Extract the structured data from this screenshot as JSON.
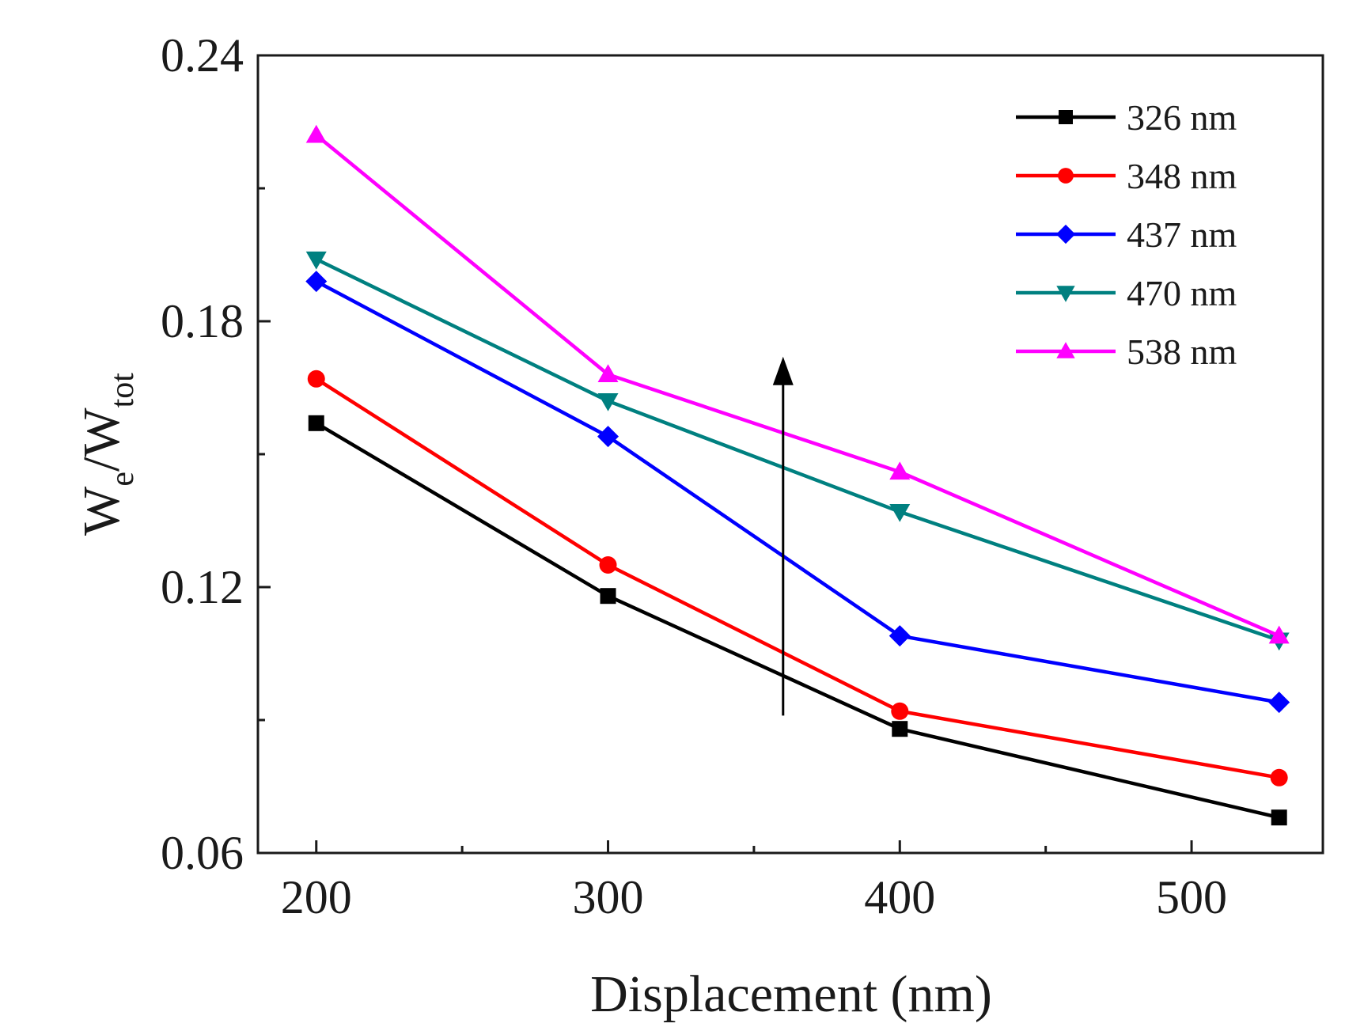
{
  "chart_data": {
    "type": "line",
    "title": "",
    "xlabel": "Displacement (nm)",
    "ylabel": {
      "base1": "W",
      "sub1": "e",
      "sep": "/",
      "base2": "W",
      "sub2": "tot"
    },
    "xlim": [
      180,
      545
    ],
    "ylim": [
      0.06,
      0.24
    ],
    "xticks": [
      200,
      300,
      400,
      500
    ],
    "xtick_labels": [
      "200",
      "300",
      "400",
      "500"
    ],
    "yticks": [
      0.06,
      0.12,
      0.18,
      0.24
    ],
    "ytick_labels": [
      "0.06",
      "0.12",
      "0.18",
      "0.24"
    ],
    "x": [
      200,
      300,
      400,
      530
    ],
    "series": [
      {
        "name": "326 nm",
        "color": "#000000",
        "marker": "square",
        "values": [
          0.157,
          0.118,
          0.088,
          0.068
        ]
      },
      {
        "name": "348 nm",
        "color": "#ff0000",
        "marker": "circle",
        "values": [
          0.167,
          0.125,
          0.092,
          0.077
        ]
      },
      {
        "name": "437 nm",
        "color": "#0000ff",
        "marker": "diamond",
        "values": [
          0.189,
          0.154,
          0.109,
          0.094
        ]
      },
      {
        "name": "470 nm",
        "color": "#008080",
        "marker": "triangle-down",
        "values": [
          0.194,
          0.162,
          0.137,
          0.108
        ]
      },
      {
        "name": "538 nm",
        "color": "#ff00ff",
        "marker": "triangle-up",
        "values": [
          0.222,
          0.168,
          0.146,
          0.109
        ]
      }
    ],
    "legend_position": "top-right",
    "annotations": [
      {
        "type": "arrow",
        "x": 360,
        "from_y": 0.091,
        "to_y": 0.172,
        "color": "#000000",
        "meaning": "increasing wavelength"
      }
    ]
  }
}
